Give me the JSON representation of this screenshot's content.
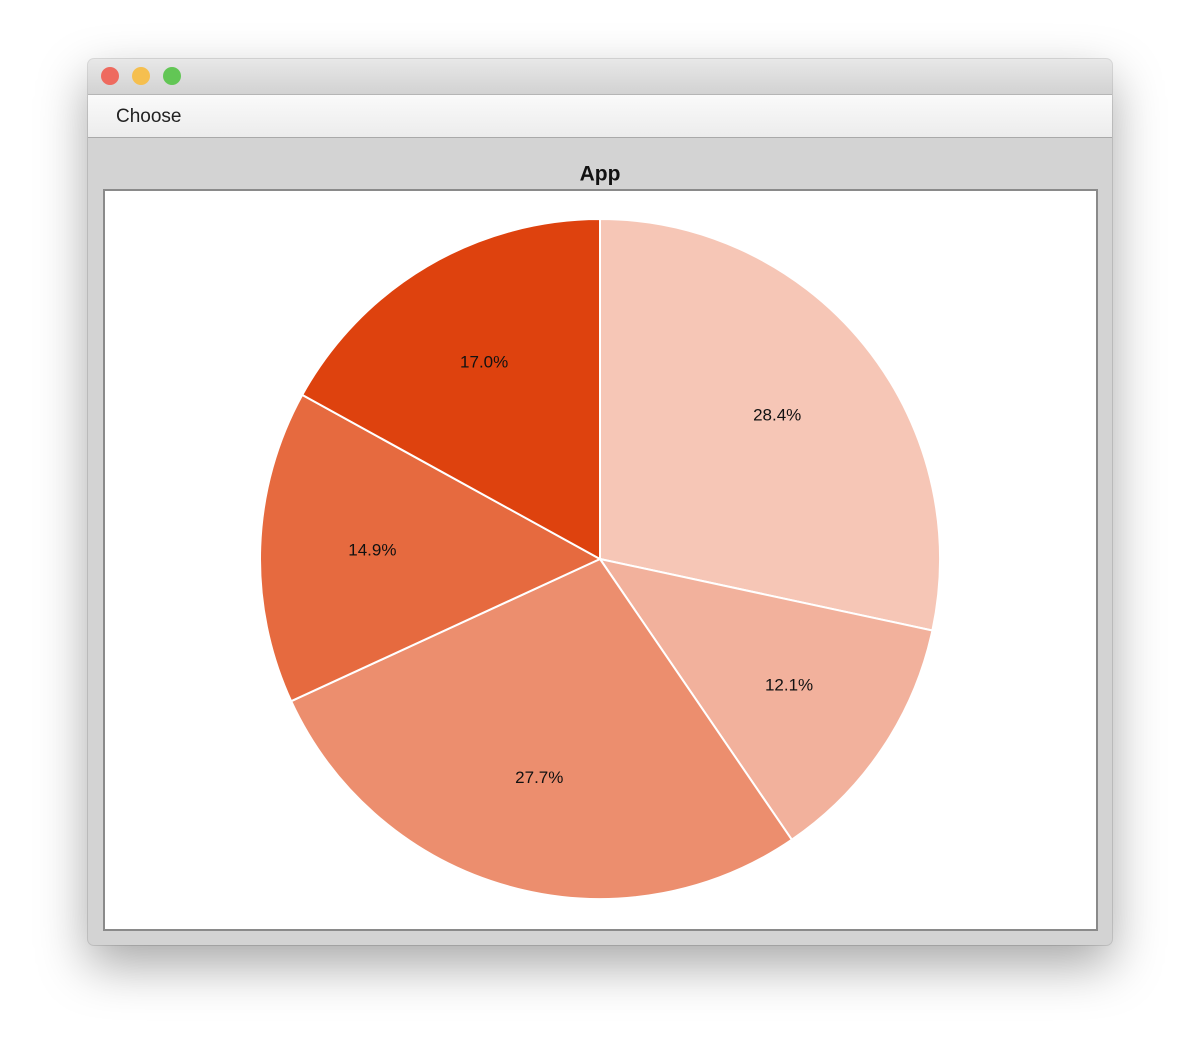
{
  "window": {
    "menu": [
      "Choose"
    ]
  },
  "chart_data": {
    "type": "pie",
    "title": "App",
    "categories": [
      null,
      null,
      null,
      null,
      null
    ],
    "values": [
      28.4,
      12.1,
      27.7,
      14.9,
      17.0
    ],
    "value_labels": [
      "28.4%",
      "12.1%",
      "27.7%",
      "14.9%",
      "17.0%"
    ],
    "colors": [
      "#f6c6b6",
      "#f2b19c",
      "#ec8e6e",
      "#e66a3f",
      "#de420e"
    ]
  }
}
